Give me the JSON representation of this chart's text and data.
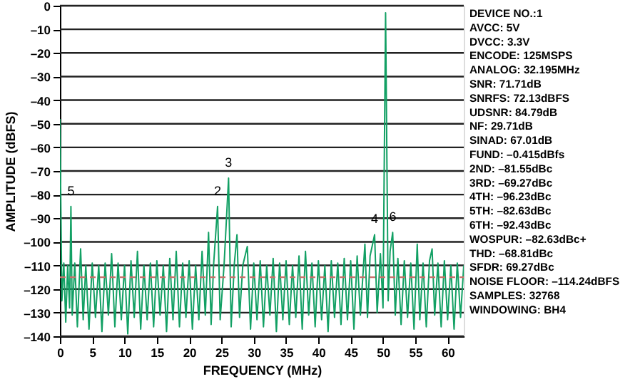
{
  "chart_data": {
    "type": "line",
    "xlabel": "FREQUENCY (MHz)",
    "ylabel": "AMPLITUDE (dBFS)",
    "xlim": [
      0,
      62.5
    ],
    "xticks": [
      0,
      5,
      10,
      15,
      20,
      25,
      30,
      35,
      40,
      45,
      50,
      55,
      60
    ],
    "ylim": [
      -140,
      0
    ],
    "yticks": [
      0,
      {
        "value": -10,
        "label": "–10"
      },
      {
        "value": -20,
        "label": "–20"
      },
      {
        "value": -30,
        "label": "–30"
      },
      {
        "value": -40,
        "label": "–40"
      },
      {
        "value": -50,
        "label": "–50"
      },
      {
        "value": -60,
        "label": "–60"
      },
      {
        "value": -70,
        "label": "–70"
      },
      {
        "value": -80,
        "label": "–80"
      },
      {
        "value": -90,
        "label": "–90"
      },
      {
        "value": -100,
        "label": "–100"
      },
      {
        "value": -110,
        "label": "–110"
      },
      {
        "value": -120,
        "label": "–120"
      },
      {
        "value": -130,
        "label": "–130"
      },
      {
        "value": -140,
        "label": "–140"
      }
    ],
    "grid": "y",
    "x": [
      0,
      0.3,
      0.6,
      0.9,
      1.2,
      1.5,
      1.7,
      1.9,
      2.3,
      2.7,
      3.2,
      3.6,
      4.0,
      4.5,
      5.0,
      5.5,
      6.0,
      6.5,
      7.0,
      7.5,
      8.0,
      8.5,
      9.0,
      9.5,
      10.0,
      10.5,
      11.0,
      11.5,
      12.0,
      12.5,
      13.0,
      13.5,
      14.0,
      14.5,
      15.0,
      15.5,
      16.0,
      16.5,
      17.0,
      17.5,
      18.0,
      18.5,
      19.0,
      19.5,
      20.0,
      20.5,
      21.0,
      21.5,
      22.0,
      22.5,
      23.0,
      23.4,
      23.8,
      24.4,
      24.8,
      25.4,
      26.1,
      26.5,
      27.0,
      27.4,
      27.8,
      28.3,
      29.0,
      29.5,
      30.0,
      30.5,
      31.0,
      31.5,
      32.0,
      32.5,
      33.0,
      33.5,
      34.0,
      34.5,
      35.0,
      35.5,
      36.0,
      36.5,
      37.0,
      37.5,
      38.0,
      38.5,
      39.0,
      39.5,
      40.0,
      40.5,
      41.0,
      41.5,
      42.0,
      42.5,
      43.0,
      43.5,
      44.0,
      44.5,
      45.0,
      45.5,
      46.0,
      46.5,
      47.2,
      47.6,
      48.0,
      48.7,
      49.1,
      49.6,
      50.0,
      50.4,
      50.8,
      51.1,
      51.5,
      51.9,
      52.3,
      52.8,
      53.3,
      53.8,
      54.3,
      54.8,
      55.3,
      55.7,
      56.2,
      56.7,
      57.2,
      57.6,
      58.0,
      58.5,
      59.0,
      59.5,
      60.0,
      60.5,
      61.0,
      61.5,
      62.0,
      62.5
    ],
    "series": [
      {
        "color": "#12a064",
        "values": [
          -48,
          -125,
          -109,
          -134,
          -110,
          -128,
          -85,
          -131,
          -109,
          -136,
          -103,
          -133,
          -110,
          -137,
          -109,
          -132,
          -110,
          -138,
          -109,
          -131,
          -105,
          -136,
          -109,
          -133,
          -110,
          -139,
          -108,
          -132,
          -104,
          -137,
          -110,
          -133,
          -109,
          -136,
          -108,
          -131,
          -110,
          -138,
          -107,
          -133,
          -104,
          -136,
          -109,
          -132,
          -108,
          -137,
          -110,
          -133,
          -104,
          -131,
          -96,
          -135,
          -109,
          -85,
          -133,
          -110,
          -73,
          -136,
          -109,
          -97,
          -132,
          -110,
          -102,
          -137,
          -109,
          -133,
          -108,
          -136,
          -110,
          -131,
          -107,
          -138,
          -109,
          -133,
          -108,
          -135,
          -110,
          -132,
          -106,
          -137,
          -104,
          -131,
          -109,
          -136,
          -108,
          -133,
          -110,
          -138,
          -108,
          -132,
          -109,
          -135,
          -107,
          -133,
          -108,
          -137,
          -106,
          -131,
          -101,
          -132,
          -106,
          -97,
          -130,
          -105,
          -128,
          -3,
          -125,
          -104,
          -96,
          -131,
          -107,
          -135,
          -108,
          -132,
          -109,
          -137,
          -101,
          -133,
          -109,
          -136,
          -108,
          -103,
          -131,
          -109,
          -136,
          -108,
          -133,
          -110,
          -137,
          -109,
          -132,
          -110
        ]
      }
    ],
    "ref_lines": [
      {
        "axis": "y",
        "value": -115,
        "color": "#c8706a",
        "line_style": "dashed"
      }
    ],
    "annotations": [
      {
        "text": "5",
        "x": 1.7,
        "y": -85
      },
      {
        "text": "2",
        "x": 24.4,
        "y": -85
      },
      {
        "text": "3",
        "x": 26.1,
        "y": -73
      },
      {
        "text": "4",
        "x": 48.7,
        "y": -97
      },
      {
        "text": "6",
        "x": 51.5,
        "y": -96
      },
      "DEVICE NO.:1",
      "AVCC: 5V",
      "DVCC: 3.3V",
      "ENCODE: 125MSPS",
      "ANALOG: 32.195MHz",
      "SNR: 71.71dB",
      "SNRFS: 72.13dBFS",
      "UDSNR: 84.79dB",
      "NF: 29.71dB",
      "SINAD: 67.01dB",
      "FUND: –0.415dBfs",
      "2ND: –81.55dBc",
      "3RD: –69.27dBc",
      "4TH: –96.23dBc",
      "5TH: –82.63dBc",
      "6TH: –92.43dBc",
      "WOSPUR: –82.63dBc+",
      "THD: –68.81dBc",
      "SFDR: 69.27dBc",
      "NOISE FLOOR: –114.24dBFS",
      "SAMPLES: 32768",
      "WINDOWING: BH4"
    ]
  }
}
